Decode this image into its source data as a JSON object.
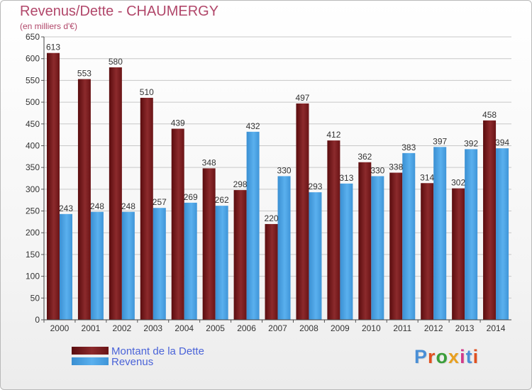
{
  "header": {
    "title": "Revenus/Dette - CHAUMERGY",
    "subtitle": "(en milliers d'€)"
  },
  "brand": {
    "logo_text": "Proxiti",
    "logo_colors": [
      "#4a8fd6",
      "#e0501f",
      "#3a9e3a",
      "#e8a020",
      "#d23a8a",
      "#4a8fd6",
      "#e0501f"
    ]
  },
  "chart_data": {
    "type": "bar",
    "title": "Revenus/Dette - CHAUMERGY",
    "subtitle": "(en milliers d'€)",
    "categories": [
      "2000",
      "2001",
      "2002",
      "2003",
      "2004",
      "2005",
      "2006",
      "2007",
      "2008",
      "2009",
      "2010",
      "2011",
      "2012",
      "2013",
      "2014"
    ],
    "series": [
      {
        "name": "Montant de la Dette",
        "color": "#7a1a1c",
        "values": [
          613,
          553,
          580,
          510,
          439,
          348,
          298,
          220,
          497,
          412,
          362,
          338,
          314,
          302,
          458
        ]
      },
      {
        "name": "Revenus",
        "color": "#4ca3e6",
        "values": [
          243,
          248,
          248,
          257,
          269,
          262,
          432,
          330,
          293,
          313,
          330,
          383,
          397,
          392,
          394
        ]
      }
    ],
    "ylim": [
      0,
      650
    ],
    "ytick_step": 50,
    "grid": true,
    "legend_position": "bottom-left"
  }
}
